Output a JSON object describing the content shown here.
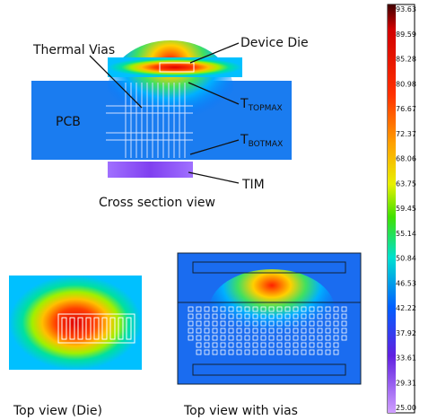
{
  "labels": {
    "thermal_vias": "Thermal Vias",
    "device_die": "Device Die",
    "pcb": "PCB",
    "t_topmax": {
      "main": "T",
      "sub": "TOPMAX"
    },
    "t_botmax": {
      "main": "T",
      "sub": "BOTMAX"
    },
    "tim": "TIM",
    "cross_section": "Cross section view",
    "top_view_die": "Top view (Die)",
    "top_view_vias": "Top view with vias"
  },
  "colorbar": {
    "labels": [
      "93.63",
      "89.59",
      "85.28",
      "80.98",
      "76.67",
      "72.37",
      "68.06",
      "63.75",
      "59.45",
      "55.14",
      "50.84",
      "46.53",
      "42.22",
      "37.92",
      "33.61",
      "29.31",
      "25.00"
    ]
  }
}
